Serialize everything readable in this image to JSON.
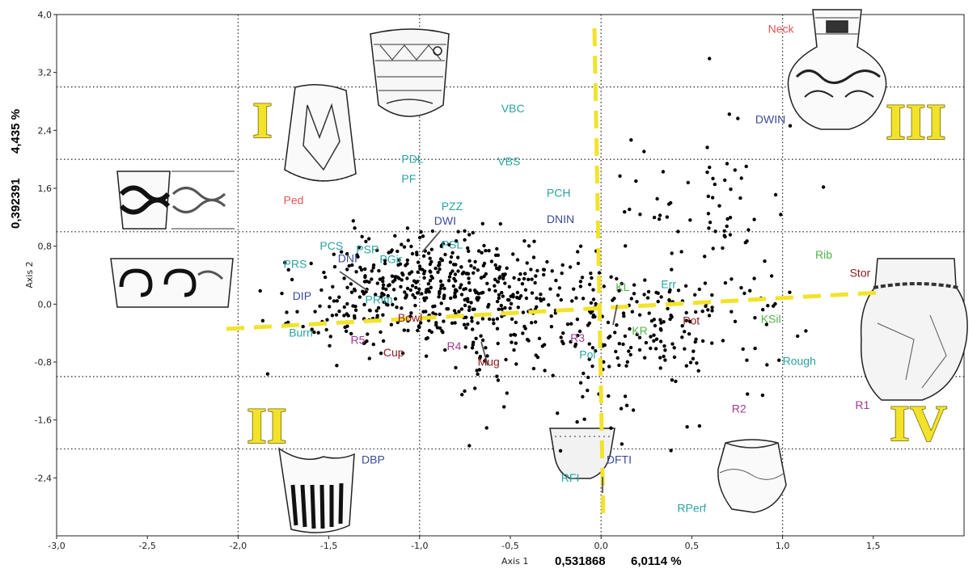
{
  "chart_data": {
    "type": "scatter",
    "title": "",
    "xlabel": "Axis 1",
    "ylabel": "Axis 2",
    "xlim": [
      -3.0,
      2.0
    ],
    "ylim": [
      -3.2,
      4.0
    ],
    "x_ticks": [
      "-3,0",
      "-2,5",
      "-2,0",
      "-1,5",
      "-1,0",
      "-0,5",
      "0,0",
      "0,5",
      "1,0",
      "1,5"
    ],
    "y_ticks": [
      "4,0",
      "3,2",
      "2,4",
      "1,6",
      "0,8",
      "0,0",
      "-0,8",
      "-1,6",
      "-2,4"
    ],
    "x_stat": {
      "eigenvalue": "0,531868",
      "percent": "6,0114 %"
    },
    "y_stat": {
      "eigenvalue": "0,392391",
      "percent": "4,435 %"
    },
    "grid": "dotted at x = -2, -1, 0, 1 and y = 3, 2, 1, -1, -2",
    "quadrants": [
      "I",
      "II",
      "III",
      "IV"
    ],
    "trend_lines": "yellow dashed: near-vertical at x≈0, near-horizontal rising from (-2.05,-0.2) to (1.95,0.25)",
    "labels": [
      {
        "text": "Neck",
        "x": 0.92,
        "y": 3.75,
        "color": "#e05555"
      },
      {
        "text": "VBC",
        "x": -0.55,
        "y": 2.65,
        "color": "#2aa3a0"
      },
      {
        "text": "DWIN",
        "x": 0.85,
        "y": 2.5,
        "color": "#3b4a9c"
      },
      {
        "text": "PDL",
        "x": -1.1,
        "y": 1.95,
        "color": "#2aa3a0"
      },
      {
        "text": "VBS",
        "x": -0.57,
        "y": 1.92,
        "color": "#2aa3a0"
      },
      {
        "text": "PF",
        "x": -1.1,
        "y": 1.68,
        "color": "#2aa3a0"
      },
      {
        "text": "PCH",
        "x": -0.3,
        "y": 1.48,
        "color": "#2aa3a0"
      },
      {
        "text": "Ped",
        "x": -1.75,
        "y": 1.38,
        "color": "#e05555"
      },
      {
        "text": "PZZ",
        "x": -0.88,
        "y": 1.3,
        "color": "#2aa3a0"
      },
      {
        "text": "DWI",
        "x": -0.92,
        "y": 1.1,
        "color": "#3b4a9c"
      },
      {
        "text": "DNIN",
        "x": -0.3,
        "y": 1.12,
        "color": "#3b4a9c"
      },
      {
        "text": "PCS",
        "x": -1.55,
        "y": 0.75,
        "color": "#2aa3a0"
      },
      {
        "text": "PSP",
        "x": -1.35,
        "y": 0.7,
        "color": "#2aa3a0"
      },
      {
        "text": "PSL",
        "x": -0.88,
        "y": 0.77,
        "color": "#2aa3a0"
      },
      {
        "text": "Rib",
        "x": 1.18,
        "y": 0.63,
        "color": "#4fb548"
      },
      {
        "text": "DNI",
        "x": -1.45,
        "y": 0.58,
        "color": "#3b4a9c"
      },
      {
        "text": "PGir",
        "x": -1.22,
        "y": 0.57,
        "color": "#2aa3a0"
      },
      {
        "text": "PRS",
        "x": -1.75,
        "y": 0.5,
        "color": "#2aa3a0"
      },
      {
        "text": "Stor",
        "x": 1.37,
        "y": 0.38,
        "color": "#8b1d20"
      },
      {
        "text": "KL",
        "x": 0.08,
        "y": 0.18,
        "color": "#4fb548"
      },
      {
        "text": "Err",
        "x": 0.33,
        "y": 0.22,
        "color": "#2aa3a0"
      },
      {
        "text": "DIP",
        "x": -1.7,
        "y": 0.06,
        "color": "#3b4a9c"
      },
      {
        "text": "PRim",
        "x": -1.3,
        "y": 0.01,
        "color": "#2aa3a0"
      },
      {
        "text": "Bowl",
        "x": -1.12,
        "y": -0.24,
        "color": "#8b1d20"
      },
      {
        "text": "Pot",
        "x": 0.45,
        "y": -0.28,
        "color": "#8b1d20"
      },
      {
        "text": "KSil",
        "x": 0.88,
        "y": -0.26,
        "color": "#4fb548"
      },
      {
        "text": "KR",
        "x": 0.17,
        "y": -0.42,
        "color": "#4fb548"
      },
      {
        "text": "Burn",
        "x": -1.72,
        "y": -0.45,
        "color": "#2aa3a0"
      },
      {
        "text": "R5",
        "x": -1.38,
        "y": -0.55,
        "color": "#a23a8f"
      },
      {
        "text": "R3",
        "x": -0.17,
        "y": -0.52,
        "color": "#a23a8f"
      },
      {
        "text": "R4",
        "x": -0.85,
        "y": -0.63,
        "color": "#a23a8f"
      },
      {
        "text": "Cup",
        "x": -1.2,
        "y": -0.72,
        "color": "#8b1d20"
      },
      {
        "text": "Pol",
        "x": -0.12,
        "y": -0.75,
        "color": "#2aa3a0"
      },
      {
        "text": "Mug",
        "x": -0.68,
        "y": -0.85,
        "color": "#8b1d20"
      },
      {
        "text": "Rough",
        "x": 1.0,
        "y": -0.84,
        "color": "#2aa3a0"
      },
      {
        "text": "R2",
        "x": 0.72,
        "y": -1.5,
        "color": "#a23a8f"
      },
      {
        "text": "R1",
        "x": 1.4,
        "y": -1.45,
        "color": "#a23a8f"
      },
      {
        "text": "DBP",
        "x": -1.32,
        "y": -2.2,
        "color": "#3b4a9c"
      },
      {
        "text": "DFTI",
        "x": 0.03,
        "y": -2.2,
        "color": "#3b4a9c"
      },
      {
        "text": "RFI",
        "x": -0.22,
        "y": -2.45,
        "color": "#2aa3a0"
      },
      {
        "text": "RPerf",
        "x": 0.42,
        "y": -2.87,
        "color": "#2aa3a0"
      }
    ]
  },
  "decorative": {
    "pottery_drawings": [
      "beaker-zigzag",
      "ped-vessel",
      "spiral-band-upper",
      "spiral-band-lower",
      "neck-amphora",
      "storage-jar",
      "dbp-sherd",
      "rfi-pot",
      "rperf-pot"
    ]
  }
}
